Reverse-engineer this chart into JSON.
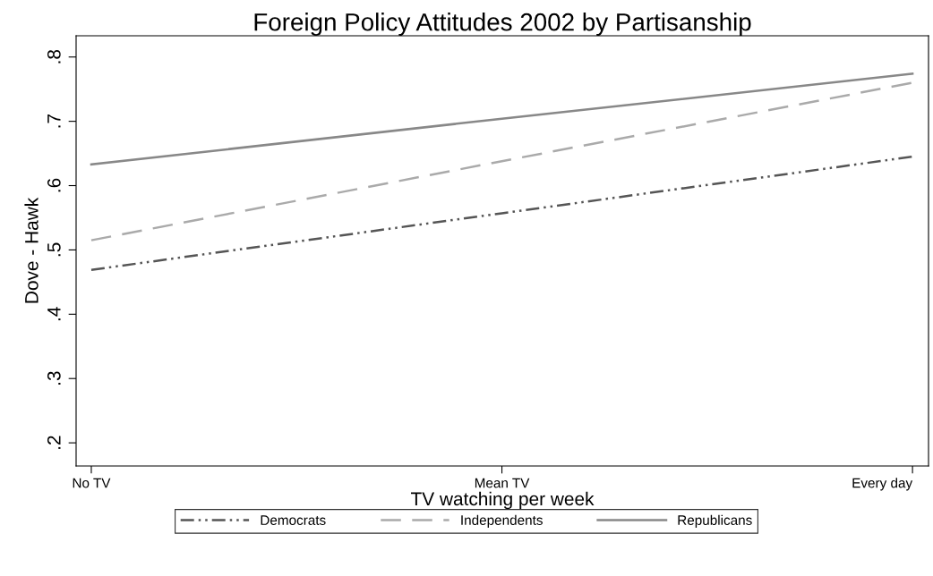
{
  "chart_data": {
    "type": "line",
    "title": "Foreign Policy Attitudes 2002 by Partisanship",
    "xlabel": "TV watching per week",
    "ylabel": "Dove - Hawk",
    "categories": [
      "No TV",
      "Mean TV",
      "Every day"
    ],
    "ylim": [
      0.164,
      0.833
    ],
    "yticks": [
      {
        "value": 0.2,
        "label": ".2"
      },
      {
        "value": 0.3,
        "label": ".3"
      },
      {
        "value": 0.4,
        "label": ".4"
      },
      {
        "value": 0.5,
        "label": ".5"
      },
      {
        "value": 0.6,
        "label": ".6"
      },
      {
        "value": 0.7,
        "label": ".7"
      },
      {
        "value": 0.8,
        "label": ".8"
      }
    ],
    "series": [
      {
        "name": "Democrats",
        "color": "#555555",
        "line_style": "dashdot",
        "values": [
          0.469,
          0.557,
          0.645
        ]
      },
      {
        "name": "Independents",
        "color": "#aaaaaa",
        "line_style": "dashed",
        "values": [
          0.515,
          0.638,
          0.76
        ]
      },
      {
        "name": "Republicans",
        "color": "#888888",
        "line_style": "solid",
        "values": [
          0.633,
          0.704,
          0.774
        ]
      }
    ],
    "grid": false,
    "legend": "bottom",
    "marker": "none"
  }
}
